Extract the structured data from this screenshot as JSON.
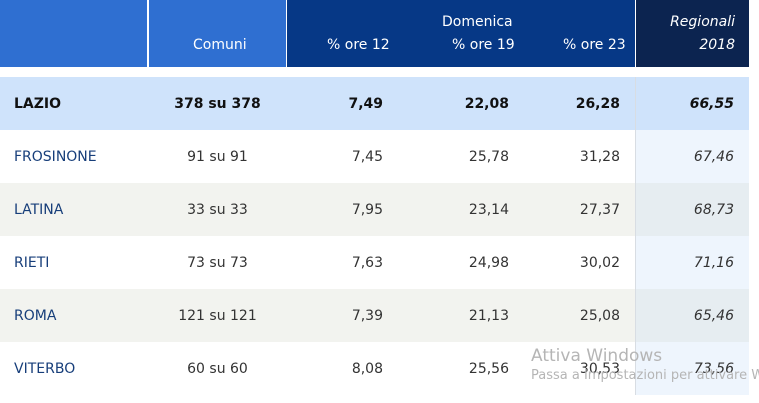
{
  "header": {
    "comuni": "Comuni",
    "domenica": "Domenica",
    "ore12": "% ore 12",
    "ore19": "% ore 19",
    "ore23": "% ore 23",
    "regionali": "Regionali",
    "regionali_year": "2018"
  },
  "total": {
    "name": "LAZIO",
    "comuni": "378 su 378",
    "ore12": "7,49",
    "ore19": "22,08",
    "ore23": "26,28",
    "reg": "66,55"
  },
  "rows": [
    {
      "name": "FROSINONE",
      "comuni": "91 su 91",
      "ore12": "7,45",
      "ore19": "25,78",
      "ore23": "31,28",
      "reg": "67,46"
    },
    {
      "name": "LATINA",
      "comuni": "33 su 33",
      "ore12": "7,95",
      "ore19": "23,14",
      "ore23": "27,37",
      "reg": "68,73"
    },
    {
      "name": "RIETI",
      "comuni": "73 su 73",
      "ore12": "7,63",
      "ore19": "24,98",
      "ore23": "30,02",
      "reg": "71,16"
    },
    {
      "name": "ROMA",
      "comuni": "121 su 121",
      "ore12": "7,39",
      "ore19": "21,13",
      "ore23": "25,08",
      "reg": "65,46"
    },
    {
      "name": "VITERBO",
      "comuni": "60 su 60",
      "ore12": "8,08",
      "ore19": "25,56",
      "ore23": "30,53",
      "reg": "73,56"
    }
  ],
  "watermark": {
    "line1": "Attiva Windows",
    "line2": "Passa a Impostazioni per attivare W"
  },
  "colors": {
    "header_light": "#2f6fd1",
    "header_dark": "#063886",
    "header_darkest": "#0c2450",
    "total_row": "#cfe3fb"
  }
}
